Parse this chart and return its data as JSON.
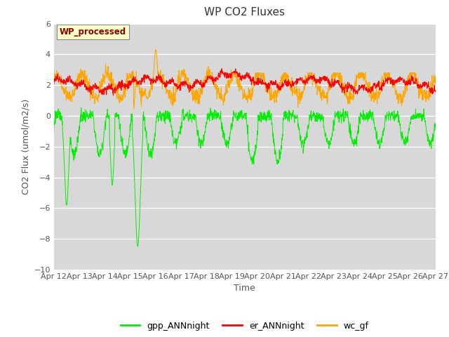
{
  "title": "WP CO2 Fluxes",
  "xlabel": "Time",
  "ylabel": "CO2 Flux (umol/m2/s)",
  "ylim": [
    -10,
    6
  ],
  "yticks": [
    -10,
    -8,
    -6,
    -4,
    -2,
    0,
    2,
    4,
    6
  ],
  "xlim": [
    0,
    15
  ],
  "n_points": 1440,
  "colors": {
    "gpp": "#00ee00",
    "er": "#ff0000",
    "wc": "#ffa500"
  },
  "legend_labels": [
    "gpp_ANNnight",
    "er_ANNnight",
    "wc_gf"
  ],
  "annotation_text": "WP_processed",
  "annotation_color": "#8b0000",
  "annotation_bg": "#ffffcc",
  "annotation_edge": "#888888",
  "fig_bg": "#ffffff",
  "axes_bg": "#d8d8d8",
  "grid_color": "#ffffff",
  "title_fontsize": 11,
  "label_fontsize": 9,
  "tick_fontsize": 8
}
